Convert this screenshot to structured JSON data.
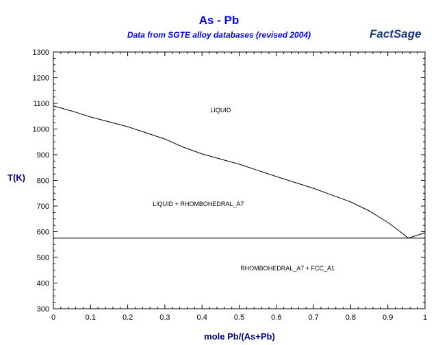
{
  "chart_data": {
    "type": "line",
    "title": "As - Pb",
    "subtitle": "Data from SGTE alloy databases (revised 2004)",
    "xlabel": "mole Pb/(As+Pb)",
    "ylabel": "T(K)",
    "xlim": [
      0,
      1
    ],
    "ylim": [
      300,
      1300
    ],
    "xticks": [
      "0",
      "0.1",
      "0.2",
      "0.3",
      "0.4",
      "0.5",
      "0.6",
      "0.7",
      "0.8",
      "0.9",
      "1"
    ],
    "yticks": [
      "300",
      "400",
      "500",
      "600",
      "700",
      "800",
      "900",
      "1000",
      "1100",
      "1200",
      "1300"
    ],
    "grid": false,
    "series": [
      {
        "x": [
          0,
          0.05,
          0.1,
          0.2,
          0.3,
          0.35,
          0.4,
          0.5,
          0.6,
          0.7,
          0.8,
          0.85,
          0.9,
          0.93,
          0.955
        ],
        "y": [
          1090,
          1070,
          1047,
          1009,
          961,
          929,
          903,
          863,
          815,
          769,
          716,
          681,
          636,
          604,
          575
        ]
      },
      {
        "x": [
          0.955,
          1.0
        ],
        "y": [
          575,
          596
        ]
      },
      {
        "x": [
          0,
          1.0
        ],
        "y": [
          575,
          575
        ]
      }
    ],
    "annotations": [
      {
        "text": "LIQUID",
        "x": 0.45,
        "y": 1065
      },
      {
        "text": "LIQUID + RHOMBOHEDRAL_A7",
        "x": 0.39,
        "y": 700
      },
      {
        "text": "RHOMBOHEDRAL_A7 + FCC_A1",
        "x": 0.63,
        "y": 450
      }
    ],
    "colors": {
      "title": "#0000ff",
      "axis_label": "#000080",
      "line": "#000000"
    }
  },
  "logo": "FactSage"
}
